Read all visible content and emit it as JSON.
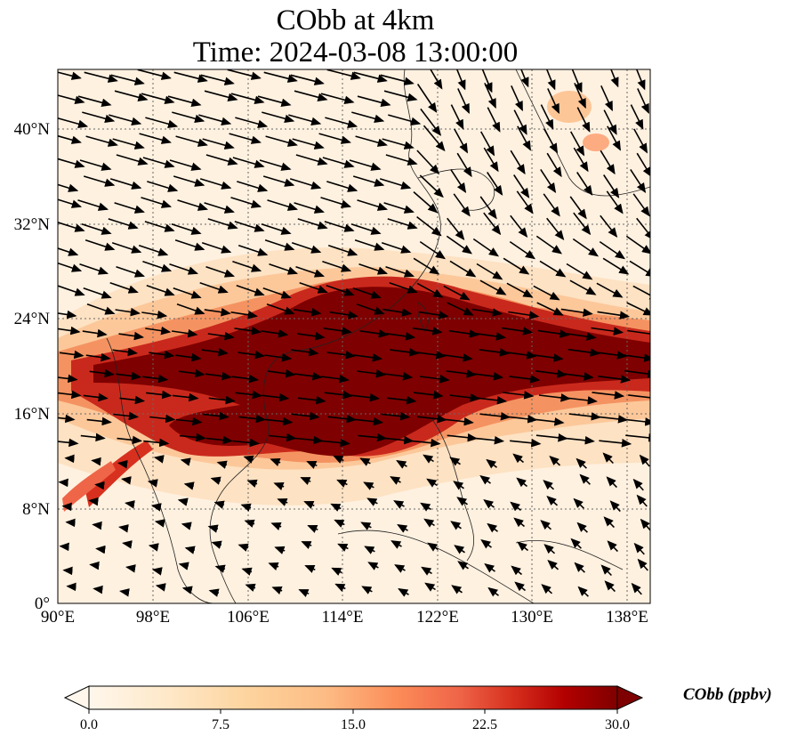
{
  "title_line1": "CObb at 4km",
  "title_line2": "Time: 2024-03-08 13:00:00",
  "lon_ticks": [
    "90°E",
    "98°E",
    "106°E",
    "114°E",
    "122°E",
    "130°E",
    "138°E"
  ],
  "lat_ticks": [
    "0°",
    "8°N",
    "16°N",
    "24°N",
    "32°N",
    "40°N"
  ],
  "colorbar": {
    "label": "CObb (ppbv)",
    "ticks": [
      "0.0",
      "7.5",
      "15.0",
      "22.5",
      "30.0"
    ],
    "min": 0,
    "max": 30,
    "colors": [
      "#fff7ec",
      "#fee8c8",
      "#fdd49e",
      "#fdbb84",
      "#fc8d59",
      "#ef6548",
      "#d7301f",
      "#b30000",
      "#7f0000"
    ],
    "extend": "both"
  },
  "map_extent": {
    "lon_min": 90,
    "lon_max": 140,
    "lat_min": 0,
    "lat_max": 45
  }
}
